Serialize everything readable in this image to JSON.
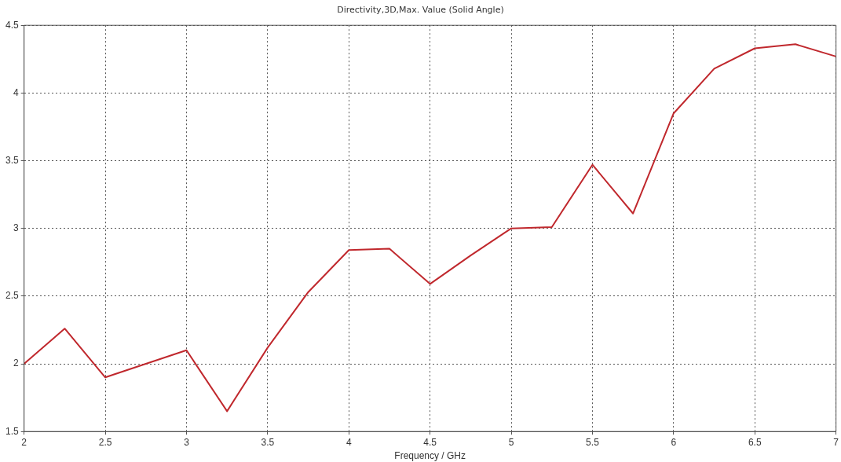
{
  "chart_data": {
    "type": "line",
    "title": "Directivity,3D,Max. Value (Solid Angle)",
    "xlabel": "Frequency / GHz",
    "x": [
      2,
      2.25,
      2.5,
      2.75,
      3,
      3.25,
      3.5,
      3.75,
      4,
      4.25,
      4.5,
      4.75,
      5,
      5.25,
      5.5,
      5.75,
      6,
      6.25,
      6.5,
      6.75,
      7
    ],
    "series": [
      {
        "color": "#c0282d",
        "values": [
          2.0,
          2.26,
          1.9,
          2.0,
          2.1,
          1.65,
          2.12,
          2.53,
          2.84,
          2.85,
          2.59,
          2.8,
          3.0,
          3.01,
          3.47,
          3.11,
          3.85,
          4.18,
          4.33,
          4.36,
          4.27
        ]
      }
    ],
    "xlim": [
      2,
      7
    ],
    "xticks": [
      2,
      2.5,
      3,
      3.5,
      4,
      4.5,
      5,
      5.5,
      6,
      6.5,
      7
    ],
    "ylim": [
      1.5,
      4.5
    ],
    "yticks": [
      1.5,
      2,
      2.5,
      3,
      3.5,
      4,
      4.5
    ],
    "grid": true,
    "legend": false,
    "marker": "none",
    "line_style": "solid"
  }
}
